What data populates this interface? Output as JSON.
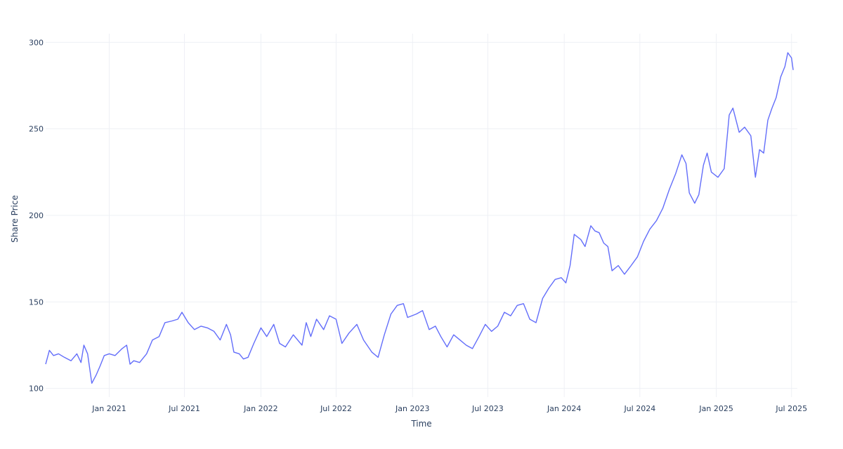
{
  "chart_data": {
    "type": "line",
    "title": "",
    "xlabel": "Time",
    "ylabel": "Share Price",
    "x_axis_type": "date",
    "xlim": [
      "2020-08-01",
      "2025-07-15"
    ],
    "ylim": [
      95,
      305
    ],
    "grid": true,
    "legend": "none",
    "x_ticks": [
      {
        "date": "2021-01-01",
        "label": "Jan 2021"
      },
      {
        "date": "2021-07-01",
        "label": "Jul 2021"
      },
      {
        "date": "2022-01-01",
        "label": "Jan 2022"
      },
      {
        "date": "2022-07-01",
        "label": "Jul 2022"
      },
      {
        "date": "2023-01-01",
        "label": "Jan 2023"
      },
      {
        "date": "2023-07-01",
        "label": "Jul 2023"
      },
      {
        "date": "2024-01-01",
        "label": "Jan 2024"
      },
      {
        "date": "2024-07-01",
        "label": "Jul 2024"
      },
      {
        "date": "2025-01-01",
        "label": "Jan 2025"
      },
      {
        "date": "2025-07-01",
        "label": "Jul 2025"
      }
    ],
    "y_ticks": [
      {
        "value": 100,
        "label": "100"
      },
      {
        "value": 150,
        "label": "150"
      },
      {
        "value": 200,
        "label": "200"
      },
      {
        "value": 250,
        "label": "250"
      },
      {
        "value": 300,
        "label": "300"
      }
    ],
    "series": [
      {
        "color": "#636efa",
        "points": [
          [
            "2020-08-01",
            114
          ],
          [
            "2020-08-10",
            122
          ],
          [
            "2020-08-20",
            119
          ],
          [
            "2020-09-01",
            120
          ],
          [
            "2020-09-15",
            118
          ],
          [
            "2020-10-01",
            116
          ],
          [
            "2020-10-15",
            120
          ],
          [
            "2020-10-25",
            115
          ],
          [
            "2020-11-01",
            125
          ],
          [
            "2020-11-10",
            120
          ],
          [
            "2020-11-20",
            103
          ],
          [
            "2020-12-01",
            108
          ],
          [
            "2020-12-10",
            113
          ],
          [
            "2020-12-20",
            119
          ],
          [
            "2021-01-01",
            120
          ],
          [
            "2021-01-15",
            119
          ],
          [
            "2021-02-01",
            123
          ],
          [
            "2021-02-12",
            125
          ],
          [
            "2021-02-20",
            114
          ],
          [
            "2021-03-01",
            116
          ],
          [
            "2021-03-15",
            115
          ],
          [
            "2021-04-01",
            120
          ],
          [
            "2021-04-15",
            128
          ],
          [
            "2021-05-01",
            130
          ],
          [
            "2021-05-15",
            138
          ],
          [
            "2021-06-01",
            139
          ],
          [
            "2021-06-15",
            140
          ],
          [
            "2021-06-25",
            144
          ],
          [
            "2021-07-10",
            138
          ],
          [
            "2021-07-25",
            134
          ],
          [
            "2021-08-10",
            136
          ],
          [
            "2021-08-25",
            135
          ],
          [
            "2021-09-10",
            133
          ],
          [
            "2021-09-25",
            128
          ],
          [
            "2021-10-10",
            137
          ],
          [
            "2021-10-20",
            131
          ],
          [
            "2021-10-28",
            121
          ],
          [
            "2021-11-10",
            120
          ],
          [
            "2021-11-20",
            117
          ],
          [
            "2021-12-01",
            118
          ],
          [
            "2021-12-15",
            126
          ],
          [
            "2022-01-01",
            135
          ],
          [
            "2022-01-15",
            130
          ],
          [
            "2022-02-01",
            137
          ],
          [
            "2022-02-15",
            126
          ],
          [
            "2022-03-01",
            124
          ],
          [
            "2022-03-20",
            131
          ],
          [
            "2022-04-10",
            125
          ],
          [
            "2022-04-20",
            138
          ],
          [
            "2022-05-01",
            130
          ],
          [
            "2022-05-15",
            140
          ],
          [
            "2022-06-01",
            134
          ],
          [
            "2022-06-15",
            142
          ],
          [
            "2022-07-01",
            140
          ],
          [
            "2022-07-15",
            126
          ],
          [
            "2022-08-01",
            132
          ],
          [
            "2022-08-20",
            137
          ],
          [
            "2022-09-05",
            128
          ],
          [
            "2022-09-25",
            121
          ],
          [
            "2022-10-10",
            118
          ],
          [
            "2022-10-25",
            131
          ],
          [
            "2022-11-10",
            143
          ],
          [
            "2022-11-25",
            148
          ],
          [
            "2022-12-10",
            149
          ],
          [
            "2022-12-20",
            141
          ],
          [
            "2023-01-10",
            143
          ],
          [
            "2023-01-25",
            145
          ],
          [
            "2023-02-10",
            134
          ],
          [
            "2023-02-25",
            136
          ],
          [
            "2023-03-10",
            130
          ],
          [
            "2023-03-25",
            124
          ],
          [
            "2023-04-10",
            131
          ],
          [
            "2023-04-25",
            128
          ],
          [
            "2023-05-10",
            125
          ],
          [
            "2023-05-25",
            123
          ],
          [
            "2023-06-10",
            130
          ],
          [
            "2023-06-25",
            137
          ],
          [
            "2023-07-10",
            133
          ],
          [
            "2023-07-25",
            136
          ],
          [
            "2023-08-10",
            144
          ],
          [
            "2023-08-25",
            142
          ],
          [
            "2023-09-10",
            148
          ],
          [
            "2023-09-25",
            149
          ],
          [
            "2023-10-10",
            140
          ],
          [
            "2023-10-25",
            138
          ],
          [
            "2023-11-10",
            152
          ],
          [
            "2023-11-25",
            158
          ],
          [
            "2023-12-10",
            163
          ],
          [
            "2023-12-25",
            164
          ],
          [
            "2024-01-05",
            161
          ],
          [
            "2024-01-15",
            171
          ],
          [
            "2024-01-25",
            189
          ],
          [
            "2024-02-10",
            186
          ],
          [
            "2024-02-20",
            182
          ],
          [
            "2024-03-05",
            194
          ],
          [
            "2024-03-15",
            191
          ],
          [
            "2024-03-25",
            190
          ],
          [
            "2024-04-05",
            184
          ],
          [
            "2024-04-15",
            182
          ],
          [
            "2024-04-25",
            168
          ],
          [
            "2024-05-10",
            171
          ],
          [
            "2024-05-25",
            166
          ],
          [
            "2024-06-10",
            171
          ],
          [
            "2024-06-25",
            176
          ],
          [
            "2024-07-10",
            185
          ],
          [
            "2024-07-25",
            192
          ],
          [
            "2024-08-10",
            197
          ],
          [
            "2024-08-25",
            204
          ],
          [
            "2024-09-10",
            215
          ],
          [
            "2024-09-25",
            224
          ],
          [
            "2024-10-10",
            235
          ],
          [
            "2024-10-20",
            230
          ],
          [
            "2024-10-28",
            213
          ],
          [
            "2024-11-10",
            207
          ],
          [
            "2024-11-20",
            212
          ],
          [
            "2024-12-01",
            229
          ],
          [
            "2024-12-10",
            236
          ],
          [
            "2024-12-20",
            225
          ],
          [
            "2025-01-05",
            222
          ],
          [
            "2025-01-20",
            227
          ],
          [
            "2025-02-01",
            258
          ],
          [
            "2025-02-10",
            262
          ],
          [
            "2025-02-25",
            248
          ],
          [
            "2025-03-10",
            251
          ],
          [
            "2025-03-25",
            246
          ],
          [
            "2025-04-05",
            222
          ],
          [
            "2025-04-15",
            238
          ],
          [
            "2025-04-25",
            236
          ],
          [
            "2025-05-05",
            255
          ],
          [
            "2025-05-15",
            262
          ],
          [
            "2025-05-25",
            268
          ],
          [
            "2025-06-05",
            280
          ],
          [
            "2025-06-15",
            286
          ],
          [
            "2025-06-22",
            294
          ],
          [
            "2025-07-01",
            291
          ],
          [
            "2025-07-05",
            284
          ]
        ]
      }
    ]
  }
}
